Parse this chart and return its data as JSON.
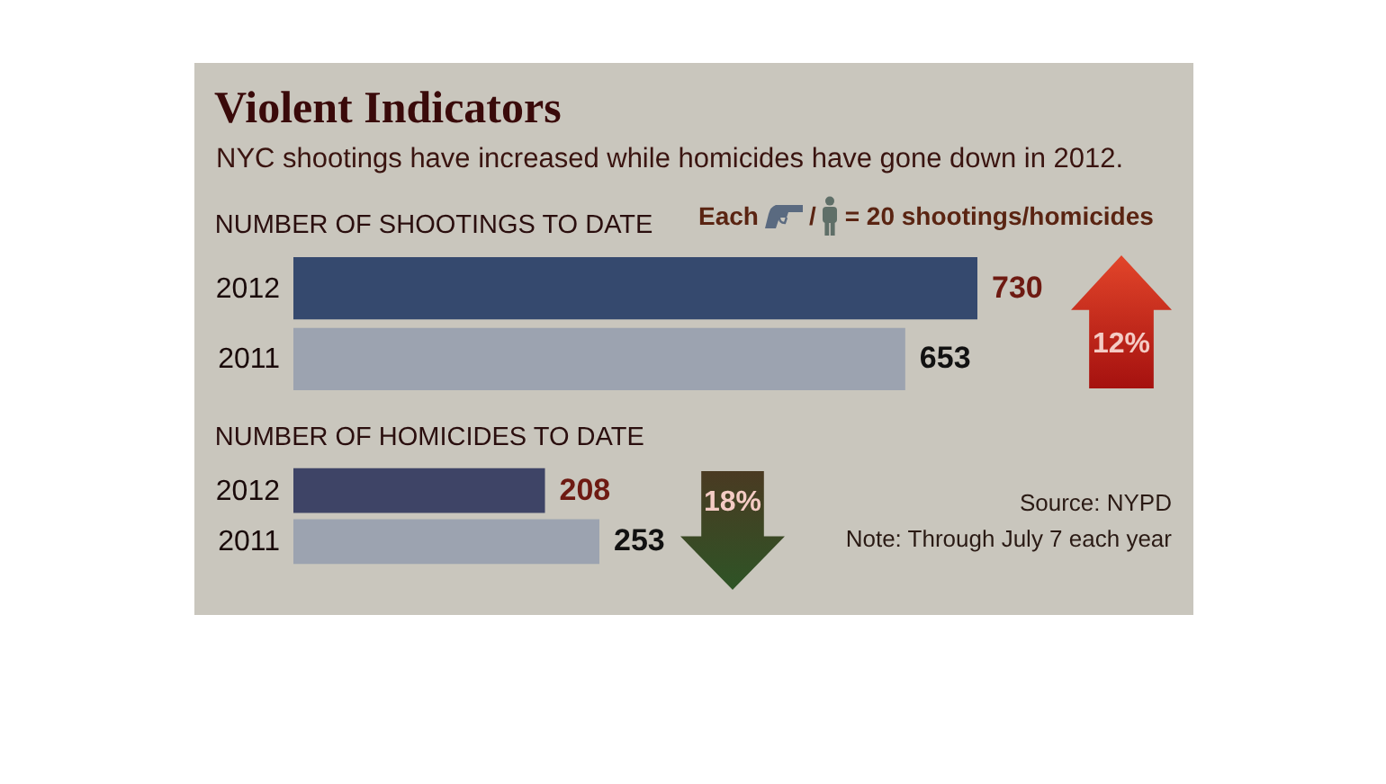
{
  "chart_data": [
    {
      "type": "other",
      "title": "Violent Indicators",
      "subtitle": "NYC shootings have increased while homicides have gone down in 2012.",
      "annotations": [
        "Each",
        "/",
        "= 20 shootings/homicides",
        "Source: NYPD",
        "Note: Through July 7 each year"
      ]
    },
    {
      "type": "bar",
      "title": "NUMBER OF SHOOTINGS TO DATE",
      "orientation": "horizontal",
      "categories": [
        "2012",
        "2011"
      ],
      "values": [
        730,
        653
      ],
      "colors": [
        "#35496e",
        "#9ca3b0"
      ],
      "data_labels": true,
      "tick_labels": "y",
      "annotations": [
        "12%"
      ]
    },
    {
      "type": "bar",
      "title": "NUMBER OF HOMICIDES TO DATE",
      "orientation": "horizontal",
      "categories": [
        "2012",
        "2011"
      ],
      "values": [
        208,
        253
      ],
      "colors": [
        "#3e4466",
        "#9ca3b0"
      ],
      "data_labels": true,
      "tick_labels": "y",
      "annotations": [
        "18%"
      ]
    }
  ]
}
